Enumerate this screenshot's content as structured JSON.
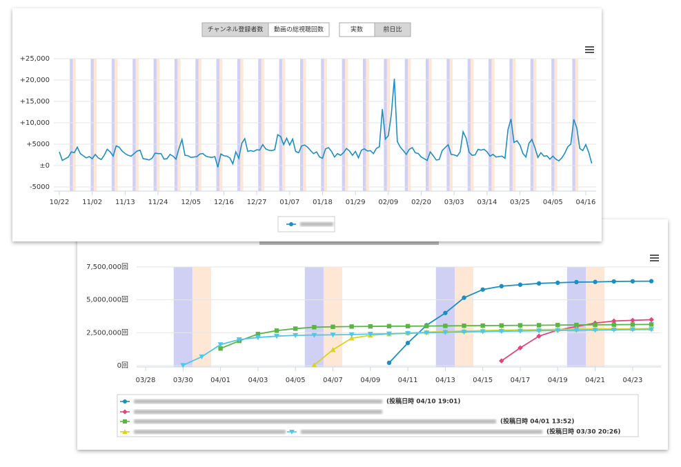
{
  "buttons": [
    "チャンネル登録者数",
    "動画の総視聴回数",
    "実数",
    "前日比"
  ],
  "chart_data": [
    {
      "type": "line",
      "categories": [
        "10/22",
        null,
        null,
        null,
        null,
        null,
        null,
        null,
        null,
        null,
        null,
        "11/02",
        null,
        null,
        null,
        null,
        null,
        null,
        null,
        null,
        null,
        null,
        "11/13",
        null,
        null,
        null,
        null,
        null,
        null,
        null,
        null,
        null,
        null,
        "11/24",
        null,
        null,
        null,
        null,
        null,
        null,
        null,
        null,
        null,
        null,
        "12/05",
        null,
        null,
        null,
        null,
        null,
        null,
        null,
        null,
        null,
        null,
        "12/16",
        null,
        null,
        null,
        null,
        null,
        null,
        null,
        null,
        null,
        null,
        "12/27",
        null,
        null,
        null,
        null,
        null,
        null,
        null,
        null,
        null,
        null,
        "01/07",
        null,
        null,
        null,
        null,
        null,
        null,
        null,
        null,
        null,
        null,
        "01/18",
        null,
        null,
        null,
        null,
        null,
        null,
        null,
        null,
        null,
        null,
        "01/29",
        null,
        null,
        null,
        null,
        null,
        null,
        null,
        null,
        null,
        null,
        "02/09",
        null,
        null,
        null,
        null,
        null,
        null,
        null,
        null,
        null,
        null,
        "02/20",
        null,
        null,
        null,
        null,
        null,
        null,
        null,
        null,
        null,
        null,
        "03/03",
        null,
        null,
        null,
        null,
        null,
        null,
        null,
        null,
        null,
        null,
        "03/14",
        null,
        null,
        null,
        null,
        null,
        null,
        null,
        null,
        null,
        null,
        "03/25",
        null,
        null,
        null,
        null,
        null,
        null,
        null,
        null,
        null,
        null,
        "04/05",
        null,
        null,
        null,
        null,
        null,
        null,
        null,
        null,
        null,
        null,
        "04/16",
        null,
        null
      ],
      "series": [
        {
          "color": "#1b8ec4",
          "values": [
            3200,
            1200,
            1600,
            2000,
            3200,
            3000,
            4300,
            2800,
            2300,
            1800,
            2100,
            1600,
            2600,
            1800,
            1400,
            2400,
            3800,
            3200,
            2200,
            4600,
            4300,
            3400,
            2800,
            2400,
            2200,
            2800,
            3400,
            3600,
            1600,
            1500,
            1300,
            1700,
            2900,
            2800,
            2800,
            1500,
            1600,
            2600,
            2200,
            1500,
            4000,
            6100,
            2400,
            2300,
            1900,
            2000,
            2100,
            2700,
            2800,
            2200,
            2000,
            1900,
            2100,
            -400,
            2700,
            2300,
            2200,
            1800,
            400,
            3200,
            1700,
            5200,
            6300,
            3300,
            3500,
            3300,
            3700,
            3600,
            4900,
            3900,
            3600,
            3500,
            3700,
            7200,
            6800,
            4900,
            6400,
            4800,
            6200,
            3300,
            3000,
            4600,
            4800,
            4300,
            3500,
            2800,
            3200,
            2000,
            1700,
            3900,
            4200,
            3300,
            2000,
            2800,
            2400,
            3000,
            4000,
            3400,
            2400,
            3300,
            1800,
            3600,
            3900,
            3400,
            3500,
            2800,
            4000,
            4400,
            13200,
            6200,
            7000,
            12000,
            20300,
            5600,
            4300,
            3500,
            2600,
            3800,
            4200,
            3000,
            2800,
            2000,
            1600,
            1200,
            3200,
            2300,
            1300,
            1400,
            3500,
            4200,
            4900,
            2600,
            2500,
            2200,
            3200,
            7900,
            6400,
            3100,
            2400,
            2500,
            3800,
            3600,
            3800,
            3200,
            2200,
            2600,
            2000,
            2100,
            2200,
            1700,
            8400,
            10900,
            5400,
            5800,
            4800,
            2800,
            2000,
            5200,
            6100,
            4200,
            1900,
            3000,
            2200,
            2300,
            1500,
            2200,
            1500,
            1100,
            1800,
            2900,
            4400,
            5000,
            10800,
            8800,
            4000,
            3500,
            4900,
            3100,
            500
          ],
          "marker": "circle"
        }
      ],
      "ylim": [
        -5000,
        25000
      ],
      "yticks": [
        {
          "value": 25000,
          "label": "+25,000"
        },
        {
          "value": 20000,
          "label": "+20,000"
        },
        {
          "value": 15000,
          "label": "+15,000"
        },
        {
          "value": 10000,
          "label": "+10,000"
        },
        {
          "value": 5000,
          "label": "+5000"
        },
        {
          "value": 0,
          "label": "±0"
        },
        -5000
      ],
      "grid": true
    },
    {
      "type": "line",
      "categories": [
        "03/28",
        null,
        "03/30",
        null,
        "04/01",
        null,
        "04/03",
        null,
        "04/05",
        null,
        "04/07",
        null,
        "04/09",
        null,
        "04/11",
        null,
        "04/13",
        null,
        "04/15",
        null,
        "04/17",
        null,
        "04/19",
        null,
        "04/21",
        null,
        "04/23",
        null
      ],
      "series": [
        {
          "color": "#1b8ec4",
          "marker": "circle",
          "legend_note": "(投稿日時 04/10 19:01)",
          "values": [
            null,
            null,
            null,
            null,
            null,
            null,
            null,
            null,
            null,
            null,
            null,
            null,
            null,
            210000,
            1720000,
            3070000,
            4000000,
            5160000,
            5780000,
            6040000,
            6150000,
            6250000,
            6300000,
            6350000,
            6360000,
            6400000,
            6410000,
            6420000
          ]
        },
        {
          "color": "#e0457b",
          "marker": "diamond",
          "values": [
            null,
            null,
            null,
            null,
            null,
            null,
            null,
            null,
            null,
            null,
            null,
            null,
            null,
            null,
            null,
            null,
            null,
            null,
            null,
            360000,
            1350000,
            2240000,
            2700000,
            2970000,
            3230000,
            3390000,
            3440000,
            3490000
          ]
        },
        {
          "color": "#5ab544",
          "marker": "square",
          "legend_note": "(投稿日時 04/01 13:52)",
          "values": [
            null,
            null,
            null,
            null,
            1300000,
            1880000,
            2400000,
            2660000,
            2810000,
            2920000,
            2950000,
            2970000,
            2980000,
            3000000,
            3000000,
            3010000,
            3020000,
            3030000,
            3040000,
            3050000,
            3060000,
            3070000,
            3080000,
            3090000,
            3100000,
            3110000,
            3120000,
            3130000
          ]
        },
        {
          "color": "#d8d41f",
          "marker": "triangle",
          "values": [
            null,
            null,
            null,
            null,
            null,
            null,
            null,
            null,
            null,
            50000,
            1200000,
            2080000,
            2300000,
            2400000,
            2480000,
            2540000,
            2590000,
            2630000,
            2660000,
            2690000,
            2710000,
            2730000,
            2750000,
            2770000,
            2780000,
            2790000,
            2800000,
            2810000
          ]
        },
        {
          "color": "#4fc8e8",
          "marker": "triangle-down",
          "legend_note": "(投稿日時 03/30 20:26)",
          "values": [
            null,
            null,
            20000,
            680000,
            1600000,
            1980000,
            2140000,
            2240000,
            2300000,
            2320000,
            2340000,
            2360000,
            2400000,
            2420000,
            2450000,
            2500000,
            2530000,
            2560000,
            2590000,
            2610000,
            2630000,
            2650000,
            2670000,
            2690000,
            2700000,
            2720000,
            2740000,
            2750000
          ]
        }
      ],
      "ylim": [
        0,
        7500000
      ],
      "yticks": [
        {
          "value": 7500000,
          "label": "7,500,000回"
        },
        {
          "value": 5000000,
          "label": "5,000,000回"
        },
        {
          "value": 2500000,
          "label": "2,500,000回"
        },
        {
          "value": 0,
          "label": "0回"
        }
      ],
      "grid": true
    }
  ]
}
